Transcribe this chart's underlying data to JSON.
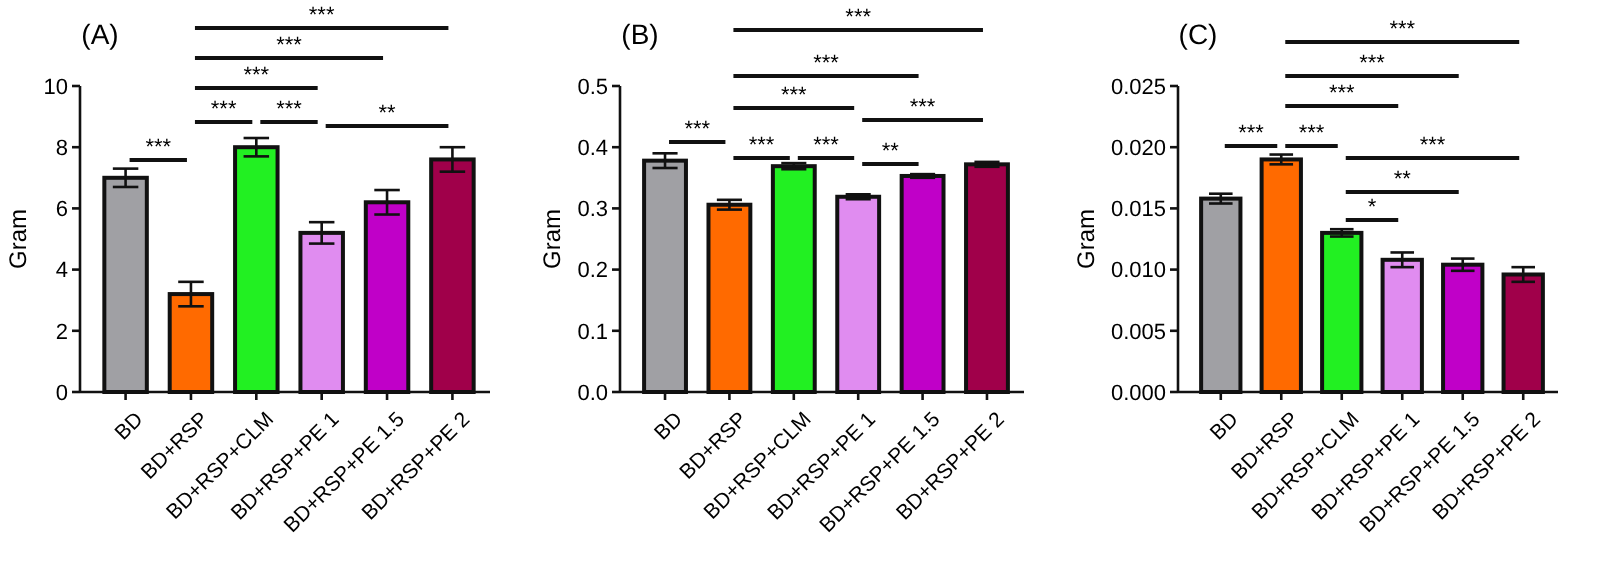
{
  "chart_data": [
    {
      "type": "bar",
      "title": "(A)",
      "ylabel": "Gram",
      "categories": [
        "BD",
        "BD+RSP",
        "BD+RSP+CLM",
        "BD+RSP+PE 1",
        "BD+RSP+PE 1.5",
        "BD+RSP+PE 2"
      ],
      "values": [
        7.0,
        3.2,
        8.0,
        5.2,
        6.2,
        7.6
      ],
      "errors": [
        0.3,
        0.4,
        0.3,
        0.35,
        0.4,
        0.4
      ],
      "colors": [
        "#a0a0a4",
        "#ff6a00",
        "#22f022",
        "#e08cf0",
        "#c000c8",
        "#a0004a"
      ],
      "ylim": [
        0,
        10
      ],
      "yticks": [
        0,
        2,
        4,
        6,
        8,
        10
      ],
      "grid": false,
      "annotations": [
        "***",
        "***",
        "***",
        "***",
        "***",
        "***",
        "**"
      ]
    },
    {
      "type": "bar",
      "title": "(B)",
      "ylabel": "Gram",
      "categories": [
        "BD",
        "BD+RSP",
        "BD+RSP+CLM",
        "BD+RSP+PE 1",
        "BD+RSP+PE 1.5",
        "BD+RSP+PE 2"
      ],
      "values": [
        0.378,
        0.306,
        0.369,
        0.319,
        0.353,
        0.372
      ],
      "errors": [
        0.012,
        0.008,
        0.005,
        0.004,
        0.003,
        0.004
      ],
      "colors": [
        "#a0a0a4",
        "#ff6a00",
        "#22f022",
        "#e08cf0",
        "#c000c8",
        "#a0004a"
      ],
      "ylim": [
        0,
        0.5
      ],
      "yticks": [
        {
          "value": 0,
          "label": "0.0"
        },
        0.1,
        0.2,
        0.3,
        0.4,
        0.5
      ],
      "grid": false,
      "annotations": [
        "***",
        "***",
        "***",
        "***",
        "***",
        "***",
        "***",
        "**"
      ]
    },
    {
      "type": "bar",
      "title": "(C)",
      "ylabel": "Gram",
      "categories": [
        "BD",
        "BD+RSP",
        "BD+RSP+CLM",
        "BD+RSP+PE 1",
        "BD+RSP+PE 1.5",
        "BD+RSP+PE 2"
      ],
      "values": [
        0.0158,
        0.019,
        0.013,
        0.0108,
        0.0104,
        0.0096
      ],
      "errors": [
        0.0004,
        0.0004,
        0.0003,
        0.0006,
        0.0005,
        0.0006
      ],
      "colors": [
        "#a0a0a4",
        "#ff6a00",
        "#22f022",
        "#e08cf0",
        "#c000c8",
        "#a0004a"
      ],
      "ylim": [
        0,
        0.025
      ],
      "yticks": [
        {
          "value": 0,
          "label": "0.000"
        },
        {
          "value": 0.005,
          "label": "0.005"
        },
        {
          "value": 0.01,
          "label": "0.010"
        },
        {
          "value": 0.015,
          "label": "0.015"
        },
        {
          "value": 0.02,
          "label": "0.020"
        },
        {
          "value": 0.025,
          "label": "0.025"
        }
      ],
      "grid": false,
      "annotations": [
        "***",
        "***",
        "***",
        "***",
        "***",
        "***",
        "**",
        "*"
      ]
    }
  ]
}
